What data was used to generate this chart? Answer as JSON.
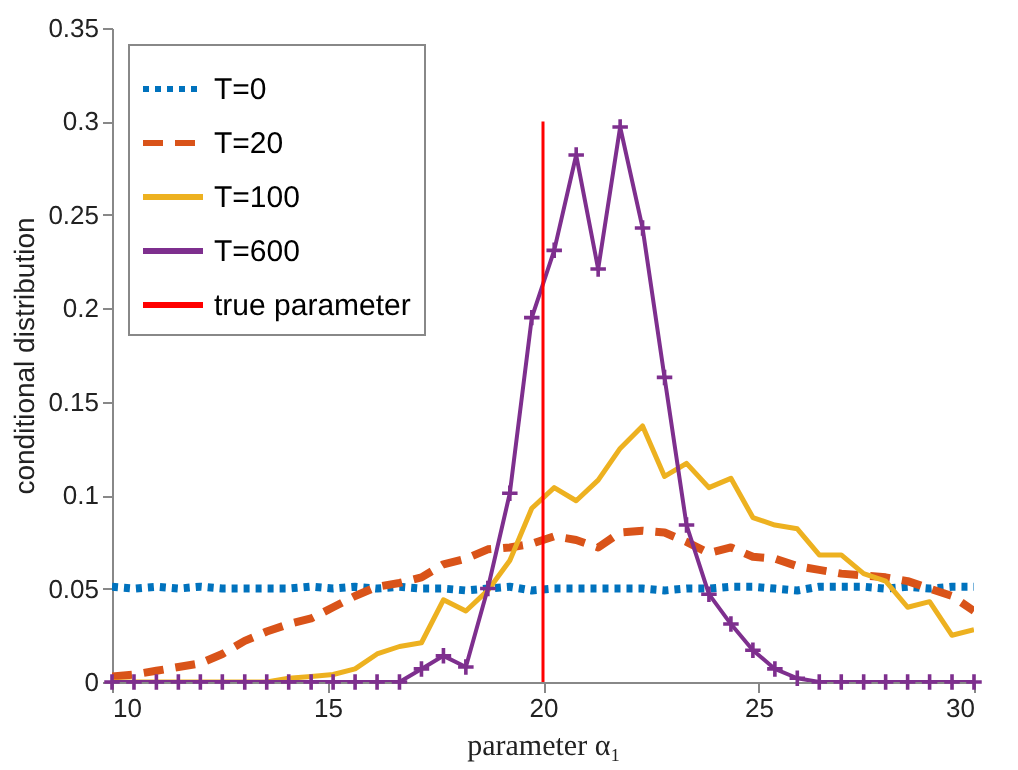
{
  "chart_data": {
    "type": "line",
    "xlabel": "parameter α₁",
    "ylabel": "conditional distribution",
    "x": [
      10,
      10.51,
      11.03,
      11.54,
      12.05,
      12.56,
      13.08,
      13.59,
      14.1,
      14.62,
      15.13,
      15.64,
      16.15,
      16.67,
      17.18,
      17.69,
      18.21,
      18.72,
      19.23,
      19.74,
      20.26,
      20.77,
      21.28,
      21.79,
      22.31,
      22.82,
      23.33,
      23.85,
      24.36,
      24.87,
      25.38,
      25.9,
      26.41,
      26.92,
      27.44,
      27.95,
      28.46,
      28.97,
      29.49,
      30
    ],
    "xlim": [
      10,
      30
    ],
    "xticks": [
      10,
      15,
      20,
      25,
      30
    ],
    "ylim": [
      0,
      0.35
    ],
    "yticks": [
      0,
      0.05,
      0.1,
      0.15,
      0.2,
      0.25,
      0.3,
      0.35
    ],
    "grid": false,
    "legend": "top left",
    "series": [
      {
        "name": "T=0",
        "color": "#0072bd",
        "line_style": "dotted",
        "marker": "none",
        "values": [
          0.051,
          0.05,
          0.051,
          0.05,
          0.051,
          0.05,
          0.05,
          0.05,
          0.05,
          0.051,
          0.05,
          0.051,
          0.05,
          0.051,
          0.05,
          0.05,
          0.049,
          0.05,
          0.051,
          0.049,
          0.05,
          0.05,
          0.05,
          0.05,
          0.05,
          0.049,
          0.05,
          0.05,
          0.051,
          0.051,
          0.05,
          0.049,
          0.051,
          0.051,
          0.051,
          0.05,
          0.051,
          0.05,
          0.051,
          0.051
        ]
      },
      {
        "name": "T=20",
        "color": "#d95319",
        "line_style": "dashed",
        "marker": "none",
        "values": [
          0.003,
          0.004,
          0.006,
          0.008,
          0.01,
          0.015,
          0.022,
          0.027,
          0.031,
          0.034,
          0.04,
          0.046,
          0.051,
          0.053,
          0.056,
          0.063,
          0.066,
          0.071,
          0.072,
          0.074,
          0.078,
          0.076,
          0.072,
          0.08,
          0.081,
          0.08,
          0.075,
          0.069,
          0.072,
          0.067,
          0.066,
          0.062,
          0.06,
          0.058,
          0.057,
          0.056,
          0.054,
          0.05,
          0.046,
          0.038
        ]
      },
      {
        "name": "T=100",
        "color": "#edb120",
        "line_style": "solid",
        "marker": "none",
        "values": [
          0,
          0,
          0,
          0,
          0,
          0,
          0,
          0,
          0.002,
          0.003,
          0.004,
          0.007,
          0.015,
          0.019,
          0.021,
          0.044,
          0.038,
          0.049,
          0.065,
          0.093,
          0.104,
          0.097,
          0.108,
          0.125,
          0.137,
          0.11,
          0.117,
          0.104,
          0.109,
          0.088,
          0.084,
          0.082,
          0.068,
          0.068,
          0.058,
          0.054,
          0.04,
          0.043,
          0.025,
          0.028
        ]
      },
      {
        "name": "T=600",
        "color": "#7e2f8e",
        "line_style": "solid",
        "marker": "cross",
        "values": [
          0,
          0,
          0,
          0,
          0,
          0,
          0,
          0,
          0,
          0,
          0,
          0,
          0,
          0,
          0.007,
          0.014,
          0.008,
          0.05,
          0.101,
          0.195,
          0.231,
          0.282,
          0.221,
          0.297,
          0.243,
          0.163,
          0.084,
          0.047,
          0.031,
          0.017,
          0.007,
          0.002,
          0,
          0,
          0,
          0,
          0,
          0,
          0,
          0
        ]
      },
      {
        "name": "true parameter",
        "color": "#ff0000",
        "line_style": "solid",
        "marker": "none",
        "x": [
          20,
          20
        ],
        "values": [
          0,
          0.3
        ]
      }
    ]
  }
}
